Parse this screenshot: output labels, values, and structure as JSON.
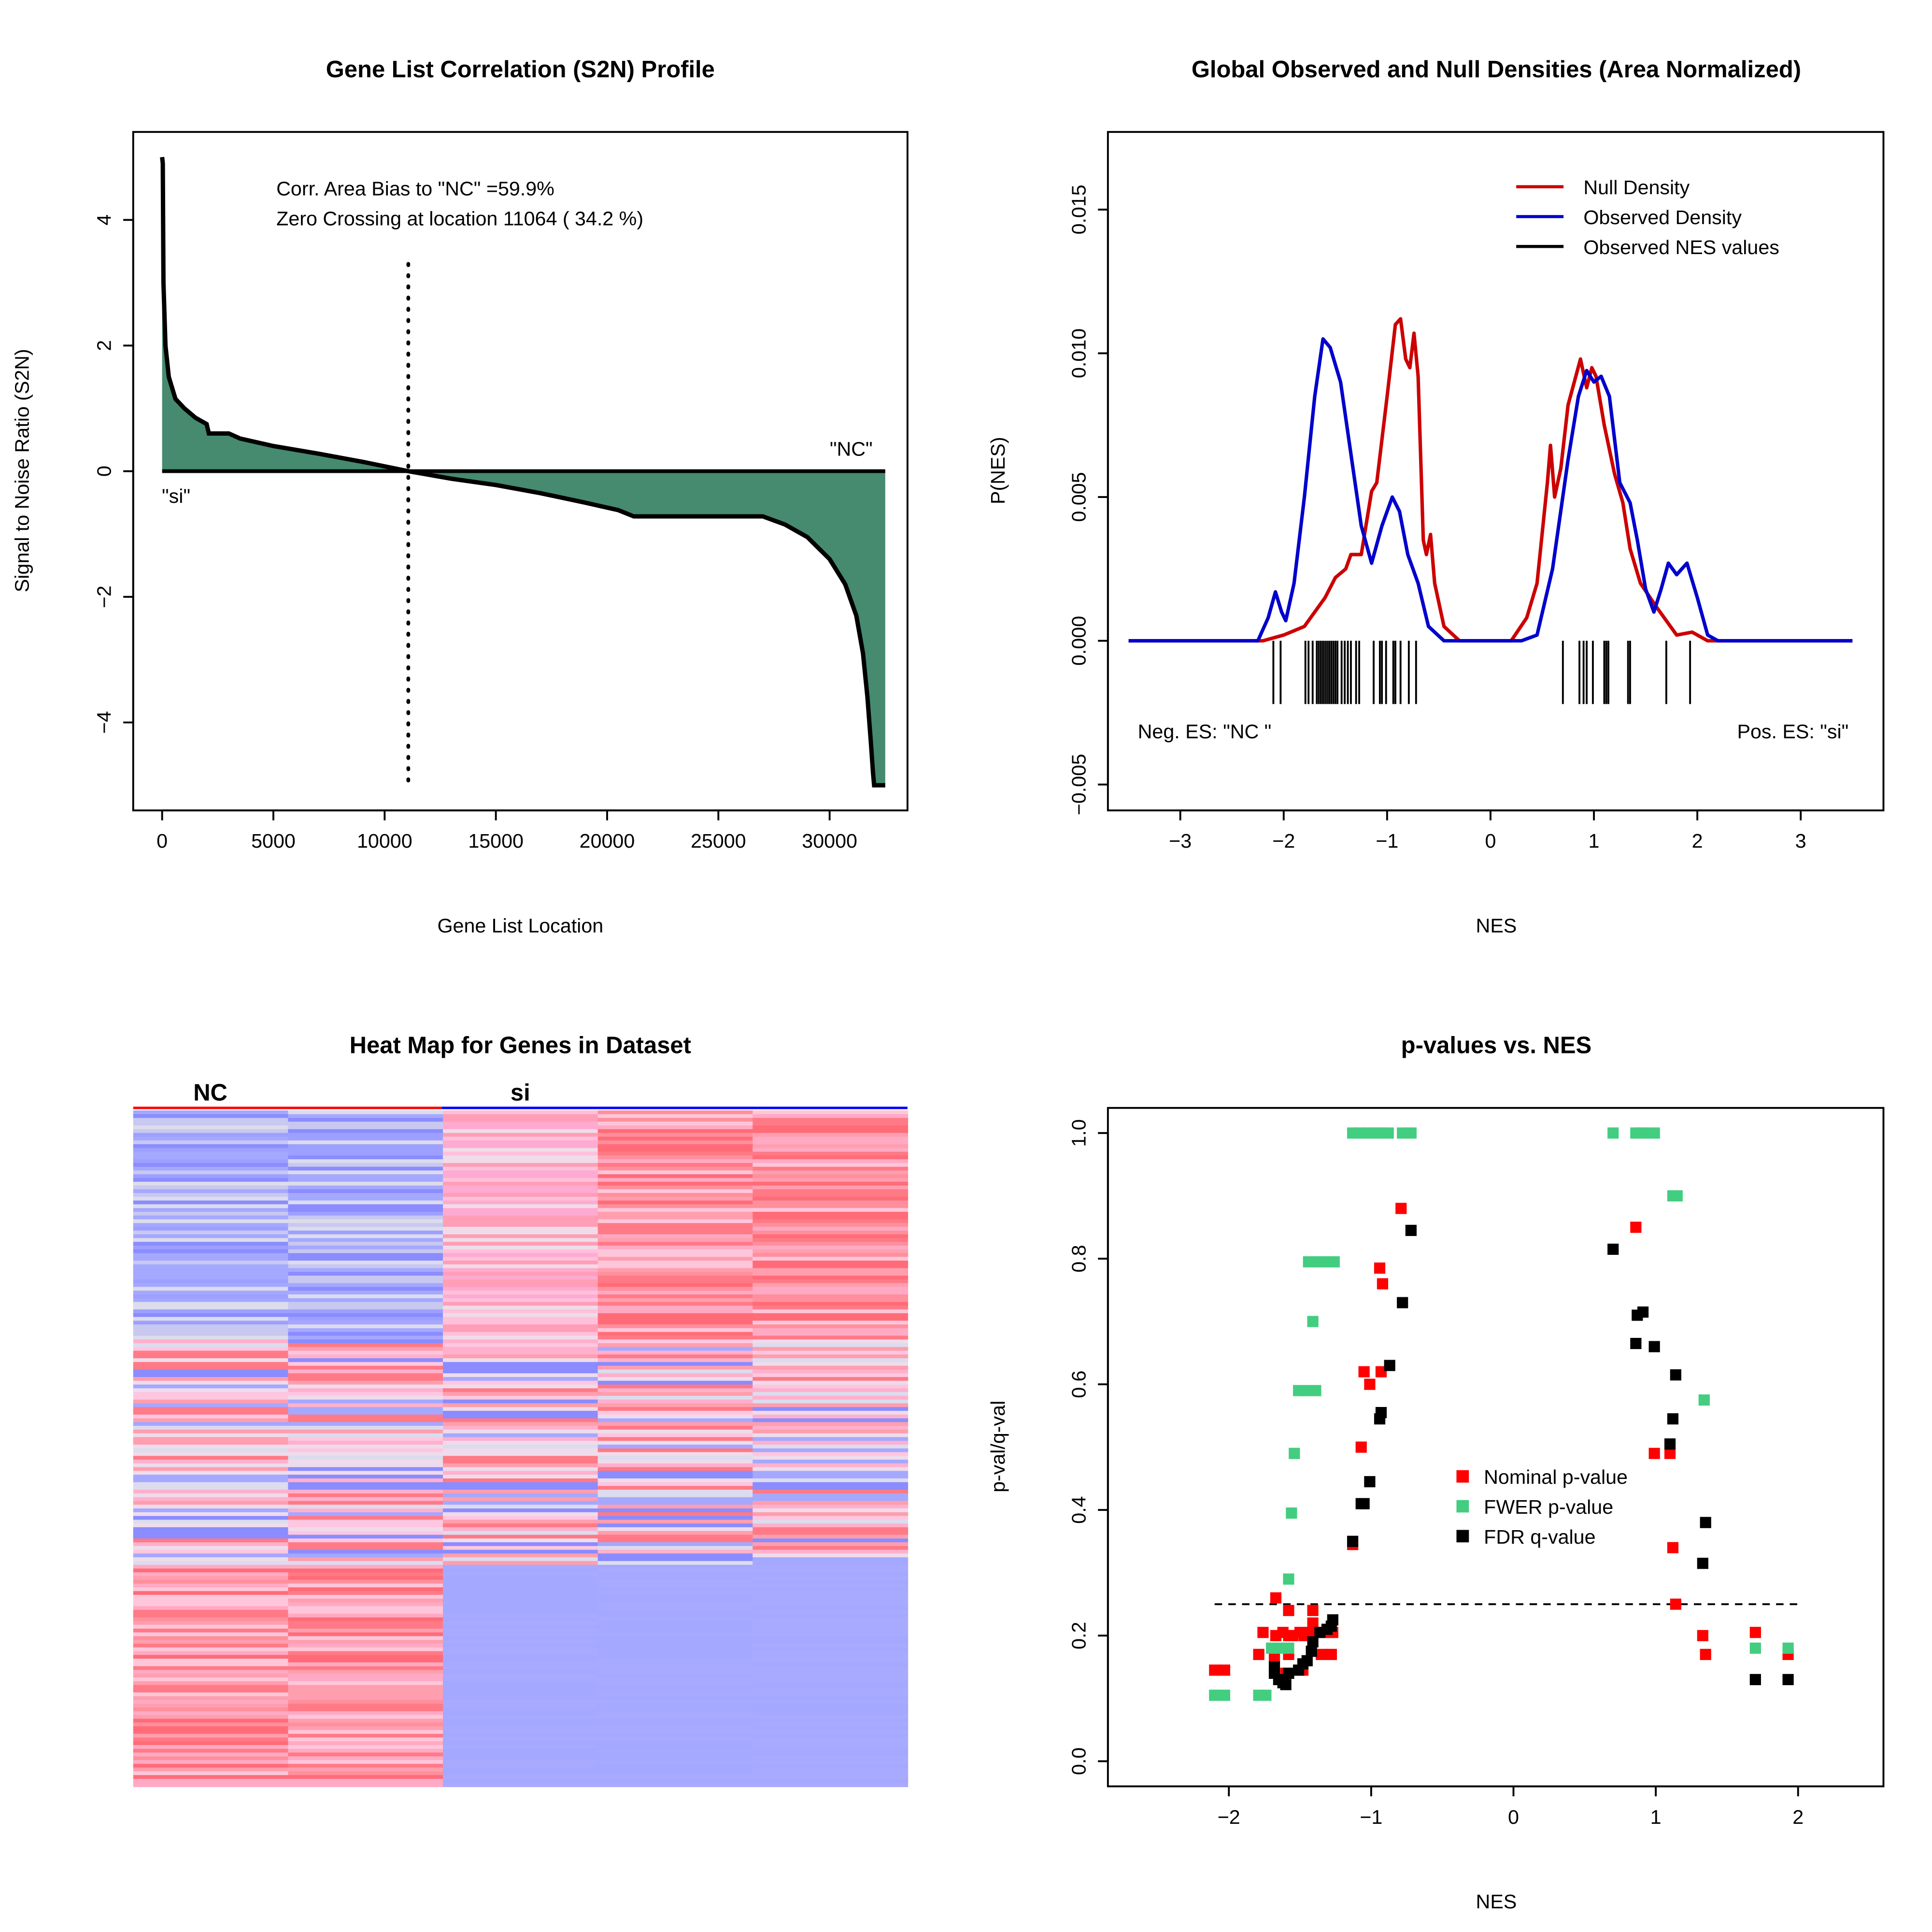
{
  "chart_data": [
    {
      "type": "area",
      "title": "Gene List Correlation (S2N) Profile",
      "xlabel": "Gene List Location",
      "ylabel": "Signal to Noise Ratio (S2N)",
      "xlim": [
        -1300,
        33500
      ],
      "ylim": [
        -5.4,
        5.4
      ],
      "xticks": [
        0,
        5000,
        10000,
        15000,
        20000,
        25000,
        30000
      ],
      "yticks": [
        -4,
        -2,
        0,
        2,
        4
      ],
      "annotations": [
        "Corr. Area Bias to \"NC\" =59.9%",
        "Zero Crossing at location  11064  ( 34.2  %)"
      ],
      "label_right": "\"NC\"",
      "label_left": "\"si\"",
      "zero_crossing": 11064,
      "fill_color": "#468a6f",
      "x": [
        0,
        30,
        60,
        150,
        300,
        600,
        1000,
        1500,
        2000,
        2100,
        3000,
        3500,
        5000,
        7000,
        9000,
        11064,
        13000,
        15000,
        17000,
        19000,
        20500,
        21200,
        27000,
        28000,
        29000,
        30000,
        30700,
        31200,
        31500,
        31700,
        31850,
        31950,
        32000,
        32500
      ],
      "y": [
        5,
        4.9,
        3,
        2,
        1.5,
        1.15,
        1.0,
        0.85,
        0.75,
        0.6,
        0.6,
        0.52,
        0.4,
        0.28,
        0.15,
        0,
        -0.12,
        -0.22,
        -0.35,
        -0.5,
        -0.62,
        -0.72,
        -0.72,
        -0.85,
        -1.05,
        -1.4,
        -1.8,
        -2.3,
        -2.9,
        -3.6,
        -4.3,
        -4.8,
        -5,
        -5
      ]
    },
    {
      "type": "line",
      "title": "Global Observed and Null Densities (Area Normalized)",
      "xlabel": "NES",
      "ylabel": "P(NES)",
      "xlim": [
        -3.7,
        3.8
      ],
      "ylim": [
        -0.0059,
        0.0177
      ],
      "xticks": [
        -3,
        -2,
        -1,
        0,
        1,
        2,
        3
      ],
      "yticks": [
        -0.005,
        0.0,
        0.005,
        0.01,
        0.015
      ],
      "ytick_labels": [
        "−0.005",
        "0.000",
        "0.005",
        "0.010",
        "0.015"
      ],
      "xtick_labels": [
        "−3",
        "−2",
        "−1",
        "0",
        "1",
        "2",
        "3"
      ],
      "legend": [
        "Null Density",
        "Observed Density",
        "Observed NES values"
      ],
      "legend_colors": [
        "#cc0000",
        "#0000cc",
        "#000000"
      ],
      "legend_position": "top-right",
      "neg_label": "Neg. ES: \"NC \"",
      "pos_label": "Pos. ES: \"si\"",
      "series": [
        {
          "name": "Null Density",
          "color": "#cc0000",
          "x": [
            -3.5,
            -2.2,
            -2.0,
            -1.8,
            -1.6,
            -1.5,
            -1.4,
            -1.35,
            -1.25,
            -1.15,
            -1.1,
            -1.05,
            -1.0,
            -0.92,
            -0.87,
            -0.82,
            -0.78,
            -0.74,
            -0.7,
            -0.65,
            -0.62,
            -0.58,
            -0.54,
            -0.45,
            -0.3,
            0.2,
            0.35,
            0.45,
            0.55,
            0.58,
            0.62,
            0.68,
            0.75,
            0.87,
            0.93,
            0.98,
            1.02,
            1.1,
            1.2,
            1.28,
            1.35,
            1.45,
            1.6,
            1.7,
            1.8,
            1.95,
            2.1,
            3.5
          ],
          "y": [
            0,
            0,
            0.0002,
            0.0005,
            0.0015,
            0.0022,
            0.0025,
            0.003,
            0.003,
            0.0052,
            0.0055,
            0.007,
            0.0085,
            0.011,
            0.0112,
            0.0098,
            0.0095,
            0.0107,
            0.0092,
            0.0035,
            0.003,
            0.0037,
            0.002,
            0.0005,
            0,
            0,
            0.0008,
            0.002,
            0.0055,
            0.0068,
            0.005,
            0.006,
            0.0082,
            0.0098,
            0.0088,
            0.0095,
            0.0092,
            0.0075,
            0.0058,
            0.0048,
            0.0032,
            0.002,
            0.0012,
            0.0007,
            0.0002,
            0.0003,
            0,
            0
          ]
        },
        {
          "name": "Observed Density",
          "color": "#0000cc",
          "x": [
            -3.5,
            -2.25,
            -2.15,
            -2.08,
            -2.02,
            -1.98,
            -1.9,
            -1.8,
            -1.7,
            -1.62,
            -1.55,
            -1.45,
            -1.35,
            -1.25,
            -1.15,
            -1.05,
            -0.95,
            -0.88,
            -0.8,
            -0.7,
            -0.6,
            -0.45,
            0.3,
            0.45,
            0.6,
            0.75,
            0.85,
            0.93,
            1.0,
            1.07,
            1.15,
            1.25,
            1.35,
            1.42,
            1.5,
            1.58,
            1.65,
            1.72,
            1.8,
            1.9,
            2.0,
            2.1,
            2.2,
            3.5
          ],
          "y": [
            0,
            0,
            0.0008,
            0.0017,
            0.001,
            0.0007,
            0.002,
            0.005,
            0.0085,
            0.0105,
            0.0102,
            0.009,
            0.0065,
            0.004,
            0.0027,
            0.004,
            0.005,
            0.0045,
            0.003,
            0.002,
            0.0005,
            0,
            0,
            0.0002,
            0.0025,
            0.0063,
            0.0085,
            0.0094,
            0.009,
            0.0092,
            0.0085,
            0.0055,
            0.0048,
            0.0035,
            0.0018,
            0.001,
            0.0018,
            0.0027,
            0.0023,
            0.0027,
            0.0015,
            0.0002,
            0,
            0
          ]
        }
      ],
      "observed_nes": [
        -2.1,
        -2.03,
        -1.79,
        -1.76,
        -1.72,
        -1.68,
        -1.66,
        -1.64,
        -1.62,
        -1.6,
        -1.58,
        -1.56,
        -1.54,
        -1.52,
        -1.5,
        -1.48,
        -1.44,
        -1.41,
        -1.38,
        -1.35,
        -1.3,
        -1.27,
        -1.13,
        -1.07,
        -1.05,
        -1.01,
        -0.94,
        -0.92,
        -0.87,
        -0.79,
        -0.72,
        0.7,
        0.86,
        0.9,
        0.93,
        0.99,
        1.1,
        1.12,
        1.14,
        1.33,
        1.35,
        1.7,
        1.93
      ]
    },
    {
      "type": "heatmap",
      "title": "Heat Map for Genes in Dataset",
      "groups": [
        {
          "name": "NC",
          "columns": 2,
          "color": "#ff0000"
        },
        {
          "name": "si",
          "columns": 3,
          "color": "#0000ff"
        }
      ],
      "low_color": "#a5a8ff",
      "high_color": "#ff7a86"
    },
    {
      "type": "scatter",
      "title": "p-values vs. NES",
      "xlabel": "NES",
      "ylabel": "p-val/q-val",
      "xlim": [
        -2.85,
        2.6
      ],
      "ylim": [
        -0.04,
        1.04
      ],
      "xticks": [
        -2,
        -1,
        0,
        1,
        2
      ],
      "xtick_labels": [
        "−2",
        "−1",
        "0",
        "1",
        "2"
      ],
      "yticks": [
        0.0,
        0.2,
        0.4,
        0.6,
        0.8,
        1.0
      ],
      "ytick_labels": [
        "0.0",
        "0.2",
        "0.4",
        "0.6",
        "0.8",
        "1.0"
      ],
      "threshold": 0.25,
      "legend_position": "center-right",
      "series": [
        {
          "name": "Nominal p-value",
          "color": "#ff0000",
          "x": [
            -0.79,
            0.86,
            -0.94,
            -0.92,
            -1.05,
            -0.93,
            -1.01,
            -1.07,
            -1.13,
            0.99,
            1.1,
            1.12,
            1.14,
            1.33,
            1.35,
            1.7,
            1.93,
            -1.67,
            -1.58,
            -1.41,
            -1.76,
            -1.67,
            -1.62,
            -1.58,
            -1.5,
            -1.44,
            -1.38,
            -1.3,
            -1.27,
            -1.55,
            -1.47,
            -1.79,
            -1.68,
            -1.58,
            -1.35,
            -1.28,
            -2.1,
            -2.03,
            -1.6,
            -1.48,
            -1.41
          ],
          "y": [
            0.88,
            0.85,
            0.785,
            0.76,
            0.62,
            0.62,
            0.6,
            0.5,
            0.345,
            0.49,
            0.49,
            0.34,
            0.25,
            0.2,
            0.17,
            0.205,
            0.17,
            0.26,
            0.24,
            0.24,
            0.205,
            0.2,
            0.205,
            0.2,
            0.205,
            0.205,
            0.205,
            0.205,
            0.205,
            0.2,
            0.2,
            0.17,
            0.165,
            0.17,
            0.17,
            0.17,
            0.145,
            0.145,
            0.14,
            0.145,
            0.22
          ]
        },
        {
          "name": "FWER p-value",
          "color": "#43cd80",
          "x": [
            -1.13,
            -1.08,
            -1.03,
            -0.98,
            -0.93,
            -0.88,
            -0.78,
            -0.72,
            0.7,
            0.86,
            0.9,
            0.93,
            0.99,
            1.12,
            1.15,
            -1.44,
            -1.38,
            -1.32,
            -1.26,
            -1.41,
            -1.51,
            -1.45,
            -1.39,
            -1.54,
            -1.56,
            -1.58,
            -1.7,
            -1.64,
            -1.58,
            -2.1,
            -2.03,
            -1.79,
            -1.74,
            1.34,
            1.7,
            1.93
          ],
          "y": [
            1,
            1,
            1,
            1,
            1,
            1,
            1,
            1,
            1,
            1,
            1,
            1,
            1,
            0.9,
            0.9,
            0.795,
            0.795,
            0.795,
            0.795,
            0.7,
            0.59,
            0.59,
            0.59,
            0.49,
            0.395,
            0.29,
            0.18,
            0.18,
            0.18,
            0.105,
            0.105,
            0.105,
            0.105,
            0.575,
            0.18,
            0.18
          ]
        },
        {
          "name": "FDR q-value",
          "color": "#000000",
          "x": [
            -0.72,
            0.7,
            -0.78,
            0.87,
            0.91,
            0.86,
            0.99,
            -0.87,
            1.14,
            -0.93,
            -0.94,
            1.12,
            1.1,
            -1.01,
            -1.07,
            -1.05,
            -1.13,
            1.35,
            1.33,
            1.7,
            1.93,
            -1.27,
            -1.28,
            -1.31,
            -1.36,
            -1.41,
            -1.42,
            -1.45,
            -1.48,
            -1.51,
            -1.58,
            -1.65,
            -1.62,
            -1.6,
            -1.68,
            -1.68
          ],
          "y": [
            0.845,
            0.815,
            0.73,
            0.71,
            0.715,
            0.665,
            0.66,
            0.63,
            0.615,
            0.555,
            0.545,
            0.545,
            0.505,
            0.445,
            0.41,
            0.41,
            0.35,
            0.38,
            0.315,
            0.13,
            0.13,
            0.225,
            0.215,
            0.21,
            0.205,
            0.19,
            0.175,
            0.16,
            0.155,
            0.145,
            0.14,
            0.13,
            0.125,
            0.122,
            0.14,
            0.15
          ]
        }
      ]
    }
  ]
}
